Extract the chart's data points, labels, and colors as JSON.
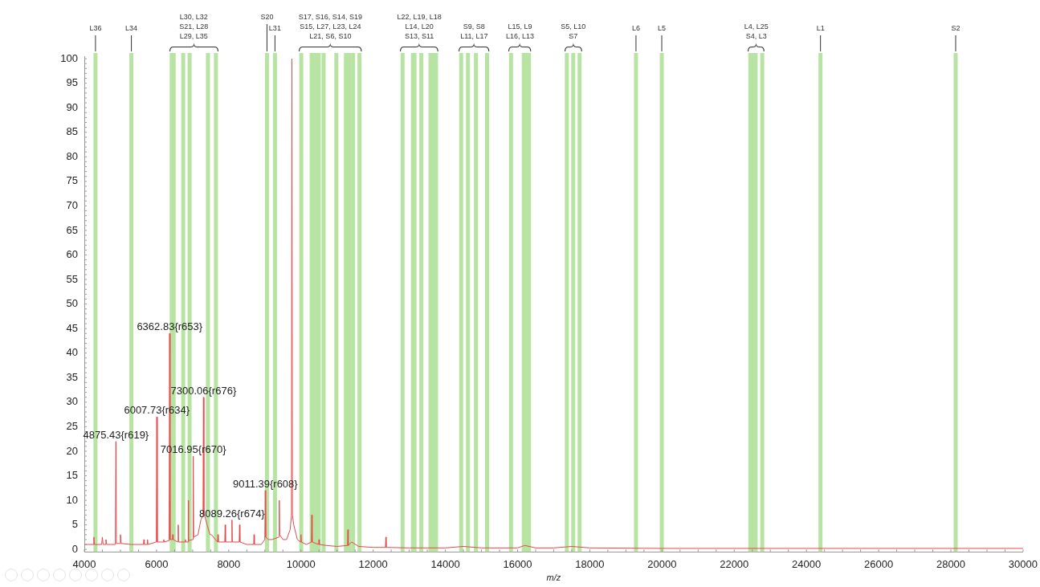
{
  "chart_data": {
    "type": "line",
    "xlabel": "m/z",
    "xlim": [
      4000,
      30000
    ],
    "xticks": [
      4000,
      6000,
      8000,
      10000,
      12000,
      14000,
      16000,
      18000,
      20000,
      22000,
      24000,
      26000,
      28000,
      30000
    ],
    "ylim": [
      -0.5,
      100.5
    ],
    "yticks": [
      0,
      5,
      10,
      15,
      20,
      25,
      30,
      35,
      40,
      45,
      50,
      55,
      60,
      65,
      70,
      75,
      80,
      85,
      90,
      95,
      100
    ],
    "grid": false,
    "legend": false,
    "marker": "none",
    "line_style": "solid",
    "series": [
      {
        "color": "#e8474a",
        "x": [
          4000,
          4100,
          4250,
          4265,
          4280,
          4480,
          4500,
          4520,
          4580,
          4600,
          4620,
          4860,
          4875,
          4890,
          4980,
          5000,
          5020,
          5300,
          5640,
          5650,
          5660,
          5740,
          5750,
          5760,
          5995,
          6007,
          6020,
          6150,
          6190,
          6200,
          6210,
          6350,
          6362,
          6375,
          6440,
          6450,
          6460,
          6590,
          6600,
          6610,
          6790,
          6800,
          6810,
          6870,
          6880,
          6890,
          7005,
          7016,
          7028,
          7150,
          7200,
          7230,
          7288,
          7300,
          7312,
          7330,
          7400,
          7480,
          7500,
          7520,
          7690,
          7700,
          7710,
          7890,
          7900,
          7910,
          8078,
          8089,
          8100,
          8290,
          8300,
          8310,
          8500,
          8690,
          8700,
          8710,
          8900,
          8999,
          9011,
          9023,
          9100,
          9200,
          9390,
          9400,
          9410,
          9500,
          9600,
          9700,
          9738,
          9750,
          9762,
          9800,
          9900,
          9990,
          10000,
          10010,
          10150,
          10290,
          10300,
          10310,
          10490,
          10500,
          10510,
          10700,
          11000,
          11290,
          11300,
          11310,
          11400,
          11600,
          12000,
          12340,
          12350,
          12360,
          13000,
          14000,
          14500,
          15000,
          16000,
          16200,
          16500,
          17000,
          17500,
          18000,
          20000,
          24000,
          30000
        ],
        "values": [
          1,
          1,
          1,
          2.5,
          1,
          1,
          2.5,
          1,
          1,
          2,
          1,
          1,
          22,
          1.2,
          1.2,
          3,
          1.2,
          1,
          1,
          2,
          1,
          1,
          2,
          1,
          1.5,
          27,
          1.5,
          1.5,
          1.5,
          2,
          1.5,
          1.8,
          44,
          2,
          2,
          3,
          2,
          1.5,
          5,
          1.5,
          1.5,
          2,
          1.5,
          1.5,
          10,
          1.8,
          2,
          19,
          2.5,
          3,
          5,
          6,
          7,
          31,
          7,
          7,
          5,
          3,
          3,
          3,
          1.5,
          3,
          1.5,
          1.5,
          5,
          1.5,
          1.5,
          6,
          1.5,
          1.5,
          5,
          1.5,
          1,
          1,
          3,
          1,
          1,
          2,
          12,
          2.5,
          2,
          2,
          2.5,
          10,
          3,
          2,
          2,
          4,
          7,
          100,
          7,
          5,
          2,
          1.5,
          3,
          1.5,
          1,
          1.5,
          7,
          1.5,
          1,
          2,
          1,
          0.8,
          0.6,
          0.8,
          4,
          0.8,
          1.5,
          0.6,
          0.4,
          0.4,
          2.5,
          0.4,
          0.3,
          0.3,
          0.6,
          0.3,
          0.3,
          0.8,
          0.3,
          0.3,
          0.6,
          0.3,
          0.2,
          0.2,
          0.2
        ]
      }
    ],
    "ref_lines": [
      {
        "axis": "x",
        "value": 4309,
        "label": "L36",
        "color": "#b7e4a2"
      },
      {
        "axis": "x",
        "value": 5303,
        "label": "L34",
        "color": "#b7e4a2"
      },
      {
        "axis": "x",
        "value": 6421,
        "label": null,
        "color": "#b7e4a2"
      },
      {
        "axis": "x",
        "value": 6474,
        "label": null,
        "color": "#b7e4a2"
      },
      {
        "axis": "x",
        "value": 6739,
        "label": null,
        "color": "#b7e4a2"
      },
      {
        "axis": "x",
        "value": 6916,
        "label": null,
        "color": "#b7e4a2"
      },
      {
        "axis": "x",
        "value": 7424,
        "label": null,
        "color": "#b7e4a2"
      },
      {
        "axis": "x",
        "value": 7645,
        "label": null,
        "color": "#b7e4a2"
      },
      {
        "axis": "x",
        "value": 9059,
        "label": "S20",
        "color": "#b7e4a2"
      },
      {
        "axis": "x",
        "value": 9280,
        "label": "L31",
        "color": "#b7e4a2"
      },
      {
        "axis": "x",
        "value": 10008,
        "label": null,
        "color": "#b7e4a2"
      },
      {
        "axis": "x",
        "value": 10296,
        "label": null,
        "color": "#b7e4a2"
      },
      {
        "axis": "x",
        "value": 10362,
        "label": null,
        "color": "#b7e4a2"
      },
      {
        "axis": "x",
        "value": 10428,
        "label": null,
        "color": "#b7e4a2"
      },
      {
        "axis": "x",
        "value": 10494,
        "label": null,
        "color": "#b7e4a2"
      },
      {
        "axis": "x",
        "value": 10627,
        "label": null,
        "color": "#b7e4a2"
      },
      {
        "axis": "x",
        "value": 10980,
        "label": null,
        "color": "#b7e4a2"
      },
      {
        "axis": "x",
        "value": 11245,
        "label": null,
        "color": "#b7e4a2"
      },
      {
        "axis": "x",
        "value": 11334,
        "label": null,
        "color": "#b7e4a2"
      },
      {
        "axis": "x",
        "value": 11444,
        "label": null,
        "color": "#b7e4a2"
      },
      {
        "axis": "x",
        "value": 11621,
        "label": null,
        "color": "#b7e4a2"
      },
      {
        "axis": "x",
        "value": 12814,
        "label": null,
        "color": "#b7e4a2"
      },
      {
        "axis": "x",
        "value": 13101,
        "label": null,
        "color": "#b7e4a2"
      },
      {
        "axis": "x",
        "value": 13145,
        "label": null,
        "color": "#b7e4a2"
      },
      {
        "axis": "x",
        "value": 13333,
        "label": null,
        "color": "#b7e4a2"
      },
      {
        "axis": "x",
        "value": 13587,
        "label": null,
        "color": "#b7e4a2"
      },
      {
        "axis": "x",
        "value": 13664,
        "label": null,
        "color": "#b7e4a2"
      },
      {
        "axis": "x",
        "value": 13742,
        "label": null,
        "color": "#b7e4a2"
      },
      {
        "axis": "x",
        "value": 14437,
        "label": null,
        "color": "#b7e4a2"
      },
      {
        "axis": "x",
        "value": 14625,
        "label": null,
        "color": "#b7e4a2"
      },
      {
        "axis": "x",
        "value": 14846,
        "label": null,
        "color": "#b7e4a2"
      },
      {
        "axis": "x",
        "value": 15155,
        "label": null,
        "color": "#b7e4a2"
      },
      {
        "axis": "x",
        "value": 15818,
        "label": null,
        "color": "#b7e4a2"
      },
      {
        "axis": "x",
        "value": 16171,
        "label": null,
        "color": "#b7e4a2"
      },
      {
        "axis": "x",
        "value": 16216,
        "label": null,
        "color": "#b7e4a2"
      },
      {
        "axis": "x",
        "value": 16315,
        "label": null,
        "color": "#b7e4a2"
      },
      {
        "axis": "x",
        "value": 17364,
        "label": null,
        "color": "#b7e4a2"
      },
      {
        "axis": "x",
        "value": 17541,
        "label": null,
        "color": "#b7e4a2"
      },
      {
        "axis": "x",
        "value": 17717,
        "label": null,
        "color": "#b7e4a2"
      },
      {
        "axis": "x",
        "value": 19279,
        "label": "L6",
        "color": "#b7e4a2"
      },
      {
        "axis": "x",
        "value": 19993,
        "label": "L5",
        "color": "#b7e4a2"
      },
      {
        "axis": "x",
        "value": 22445,
        "label": null,
        "color": "#b7e4a2"
      },
      {
        "axis": "x",
        "value": 22511,
        "label": null,
        "color": "#b7e4a2"
      },
      {
        "axis": "x",
        "value": 22593,
        "label": null,
        "color": "#b7e4a2"
      },
      {
        "axis": "x",
        "value": 22776,
        "label": null,
        "color": "#b7e4a2"
      },
      {
        "axis": "x",
        "value": 24389,
        "label": "L1",
        "color": "#b7e4a2"
      },
      {
        "axis": "x",
        "value": 28133,
        "label": "S2",
        "color": "#b7e4a2"
      }
    ],
    "annotations": [
      "L30, L32\nS21, L28\nL29, L35",
      "S17, S16, S14, S19\nS15, L27, L23, L24\nL21, S6, S10",
      "L22, L19, L18\nL14, L20\nS13, S11",
      "S9, S8\nL11, L17",
      "L15, L9\nL16, L13",
      "S5, L10\nS7",
      "L4, L25\nS4, L3",
      {
        "text": "4875.43{r619}",
        "x": 4875.43,
        "y": 22
      },
      {
        "text": "6007.73{r634}",
        "x": 6007.73,
        "y": 27
      },
      {
        "text": "6362.83{r653}",
        "x": 6362.83,
        "y": 44
      },
      {
        "text": "7016.95{r670}",
        "x": 7016.95,
        "y": 19
      },
      {
        "text": "7300.06{r676}",
        "x": 7300.06,
        "y": 31
      },
      {
        "text": "8089.26{r674}",
        "x": 8089.26,
        "y": 6
      },
      {
        "text": "9011.39{r608}",
        "x": 9011.39,
        "y": 12
      }
    ]
  }
}
